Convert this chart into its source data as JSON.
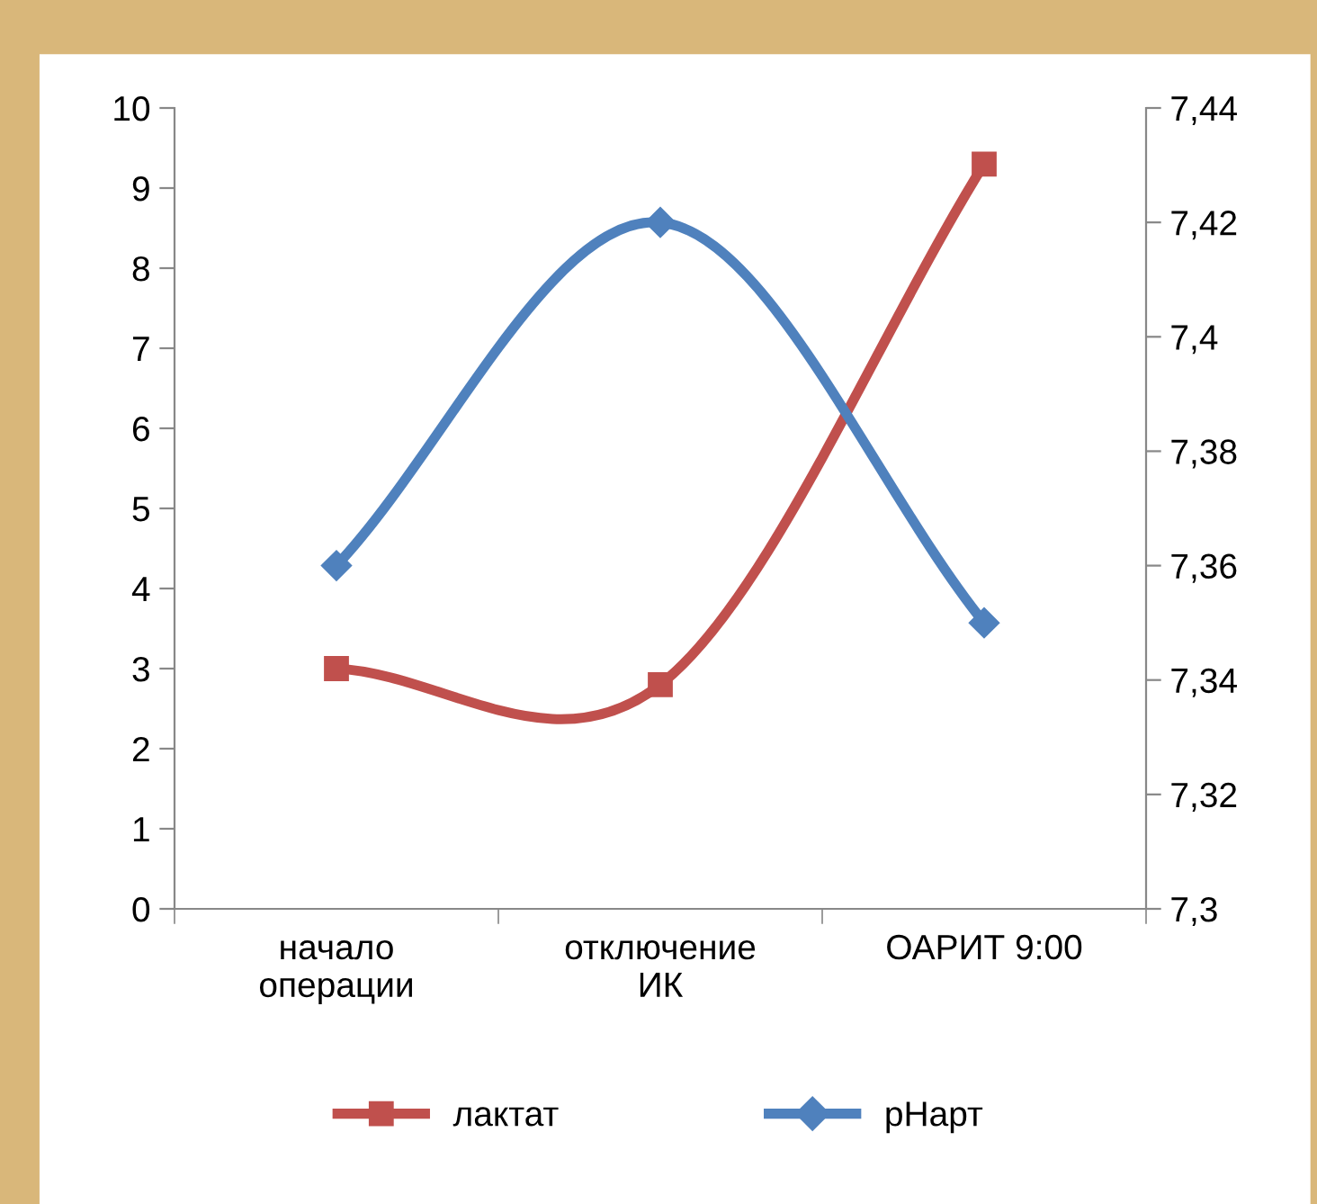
{
  "chart_data": {
    "type": "line",
    "categories": [
      "начало\nоперации",
      "отключение\nИК",
      "ОАРИТ 9:00"
    ],
    "series": [
      {
        "name": "лактат",
        "color": "#c0504d",
        "marker": "square",
        "values": [
          3.0,
          2.8,
          9.3
        ]
      },
      {
        "name": "pHарт",
        "color": "#4f81bd",
        "marker": "diamond",
        "axis": "y2",
        "values": [
          7.36,
          7.42,
          7.35
        ]
      }
    ],
    "ylim": [
      0,
      10
    ],
    "yticks": [
      0,
      1,
      2,
      3,
      4,
      5,
      6,
      7,
      8,
      9,
      10
    ],
    "y2lim": [
      7.3,
      7.44
    ],
    "y2ticks": [
      {
        "value": 7.3,
        "label": "7,3"
      },
      {
        "value": 7.32,
        "label": "7,32"
      },
      {
        "value": 7.34,
        "label": "7,34"
      },
      {
        "value": 7.36,
        "label": "7,36"
      },
      {
        "value": 7.38,
        "label": "7,38"
      },
      {
        "value": 7.4,
        "label": "7,4"
      },
      {
        "value": 7.42,
        "label": "7,42"
      },
      {
        "value": 7.44,
        "label": "7,44"
      }
    ],
    "grid": false,
    "legend": "bottom"
  }
}
